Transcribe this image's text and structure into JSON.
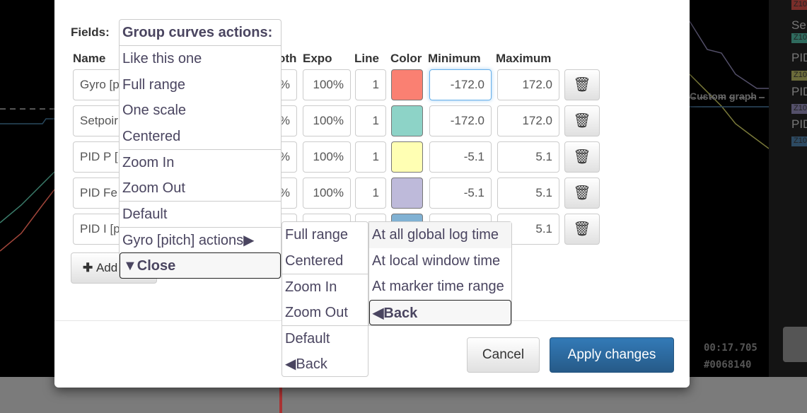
{
  "background": {
    "graph_label": "Custom graph",
    "time": "00:17.705",
    "frame": "#0068140",
    "legend": [
      {
        "label": "Se",
        "tag": "Z10",
        "color": "#2f6b5e"
      },
      {
        "label": "PID",
        "tag": "Z10",
        "color": "#6b6b3a"
      },
      {
        "label": "PID",
        "tag": "Z10",
        "color": "#54506a"
      },
      {
        "label": "PID",
        "tag": "Z10",
        "color": "#2d4a62"
      }
    ],
    "top_tag": {
      "tag": "Z10",
      "color": "#7a2e2a"
    }
  },
  "dialog": {
    "fields_label": "Fields:",
    "columns": {
      "name": "Name",
      "smooth": "oth",
      "expo": "Expo",
      "line": "Line",
      "color": "Color",
      "minimum": "Minimum",
      "maximum": "Maximum"
    },
    "rows": [
      {
        "name": "Gyro [p",
        "smooth": "%",
        "expo": "100%",
        "line": "1",
        "color": "#fa8072",
        "min": "-172.0",
        "max": "172.0"
      },
      {
        "name": "Setpoir",
        "smooth": "%",
        "expo": "100%",
        "line": "1",
        "color": "#8dd3c7",
        "min": "-172.0",
        "max": "172.0"
      },
      {
        "name": "PID P [",
        "smooth": "%",
        "expo": "100%",
        "line": "1",
        "color": "#ffffb3",
        "min": "-5.1",
        "max": "5.1"
      },
      {
        "name": "PID Fe",
        "smooth": "%",
        "expo": "100%",
        "line": "1",
        "color": "#bebada",
        "min": "-5.1",
        "max": "5.1"
      },
      {
        "name": "PID I [p",
        "smooth": "",
        "expo": "",
        "line": "",
        "color": "#80b1d3",
        "min": "",
        "max": "5.1"
      }
    ],
    "add_label": "Add",
    "cancel_label": "Cancel",
    "apply_label": "Apply changes"
  },
  "menus": {
    "group": {
      "title": "Group curves actions:",
      "items": [
        "Like this one",
        "Full range",
        "One scale",
        "Centered",
        "Zoom In",
        "Zoom Out",
        "Default",
        "Gyro [pitch] actions▶",
        "▼Close"
      ]
    },
    "curve": {
      "items": [
        "Full range",
        "Centered",
        "Zoom In",
        "Zoom Out",
        "Default",
        "◀Back"
      ]
    },
    "range": {
      "items": [
        "At all global log time",
        "At local window time",
        "At marker time range",
        "◀Back"
      ]
    }
  }
}
